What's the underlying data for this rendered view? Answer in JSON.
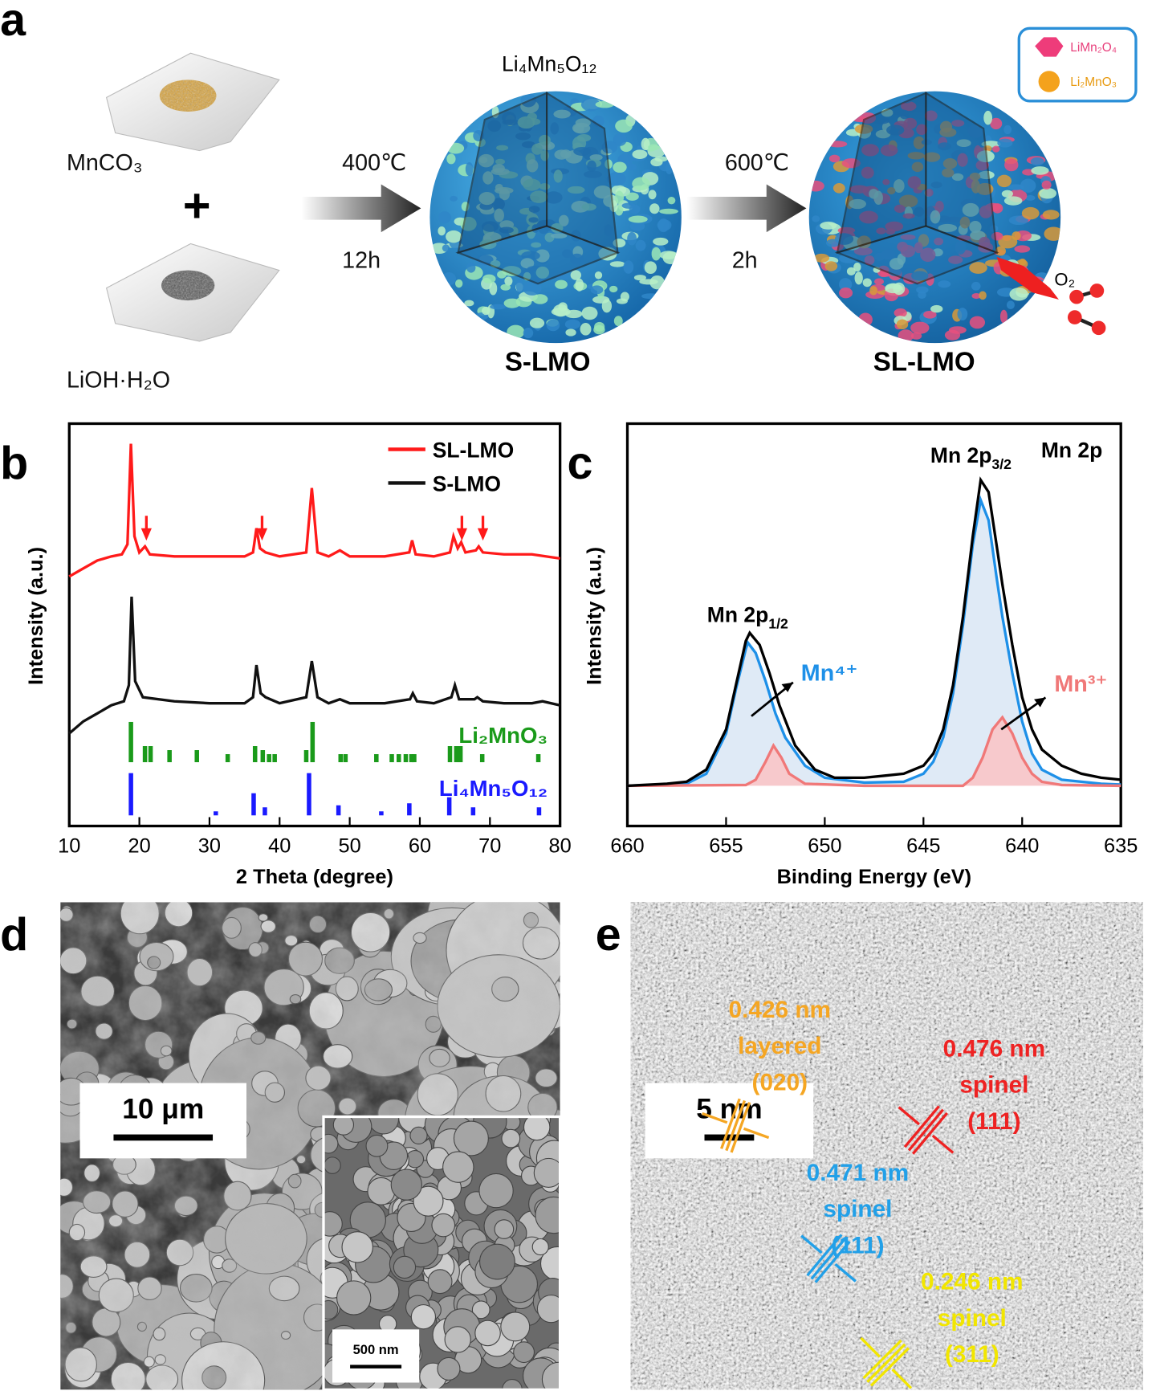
{
  "panel_labels": [
    "a",
    "b",
    "c",
    "d",
    "e"
  ],
  "scheme": {
    "precursors": [
      "MnCO₃",
      "LiOH·H₂O"
    ],
    "plus": "+",
    "steps": [
      {
        "temperature": "400℃",
        "time": "12h"
      },
      {
        "temperature": "600℃",
        "time": "2h"
      }
    ],
    "intermediate": {
      "formula": "Li₄Mn₅O₁₂",
      "name": "S-LMO"
    },
    "product": {
      "name": "SL-LMO",
      "gas": "O₂"
    },
    "legend": [
      "LiMn₂O₄",
      "Li₂MnO₃"
    ]
  },
  "chart_data": [
    {
      "type": "line",
      "x_label": "2 Theta (degree)",
      "y_label": "Intensity (a.u.)",
      "xlim": [
        10,
        80
      ],
      "xticks": [
        10,
        20,
        30,
        40,
        50,
        60,
        70,
        80
      ],
      "ylim": [
        0,
        100
      ],
      "legend": "upper right",
      "series": [
        {
          "name": "SL-LMO",
          "color": "#ff1a1a",
          "x": [
            10,
            12,
            14,
            16,
            17.5,
            18.3,
            18.8,
            19.3,
            20,
            20.8,
            21.5,
            25,
            30,
            35,
            36.2,
            36.7,
            37.2,
            38,
            40,
            43.8,
            44.6,
            45.4,
            47,
            48.6,
            50,
            55,
            58.5,
            58.9,
            59.4,
            62,
            64.3,
            64.8,
            65.4,
            65.9,
            66.5,
            68,
            68.4,
            69,
            72,
            76,
            80
          ],
          "values": [
            62,
            64,
            66,
            67,
            67.5,
            70,
            95,
            72,
            68,
            69.5,
            67.5,
            67,
            67,
            67,
            68,
            74,
            69,
            68,
            67,
            68,
            84,
            68,
            67,
            68.5,
            67,
            67,
            68,
            71,
            67.5,
            67,
            68,
            72,
            69,
            70.5,
            68,
            68.5,
            69.5,
            68,
            67.5,
            67.5,
            66.5
          ]
        },
        {
          "name": "S-LMO",
          "color": "#111111",
          "x": [
            10,
            12,
            14,
            16,
            17.8,
            18.5,
            18.9,
            19.4,
            20.5,
            25,
            30,
            35,
            36.2,
            36.7,
            37.3,
            38,
            40,
            43.8,
            44.6,
            45.4,
            47,
            48.6,
            50,
            55,
            58.6,
            59,
            59.6,
            62,
            64.5,
            65,
            65.6,
            67.8,
            68.2,
            69,
            72,
            76,
            77.5,
            80
          ],
          "values": [
            23,
            26,
            28,
            30,
            31,
            35,
            57,
            36,
            32,
            31,
            30.5,
            30.5,
            32,
            40,
            33,
            32,
            30.5,
            32,
            41,
            32,
            30.5,
            31.5,
            30.5,
            30.5,
            31.5,
            33,
            31,
            30.5,
            32,
            35,
            31.5,
            31.5,
            32,
            31,
            30.5,
            30.5,
            31,
            30
          ]
        }
      ],
      "references": [
        {
          "name": "Li₂MnO₃",
          "color": "#1a9a1a",
          "x": [
            18.8,
            20.8,
            21.6,
            24.3,
            28.2,
            32.6,
            36.5,
            37.6,
            38.5,
            39.3,
            43.8,
            44.7,
            48.7,
            49.4,
            53.8,
            56,
            57,
            58,
            58.8,
            59.2,
            64.3,
            65.2,
            65.8,
            68.9,
            76.9
          ],
          "values": [
            10,
            4,
            4,
            3,
            3,
            2,
            4,
            3,
            2,
            2,
            3,
            10,
            2,
            2,
            2,
            2,
            2,
            2,
            2,
            2,
            4,
            4,
            4,
            2,
            2
          ]
        },
        {
          "name": "Li₄Mn₅O₁₂",
          "color": "#1a1aff",
          "x": [
            18.8,
            30.9,
            36.3,
            37.9,
            44.2,
            48.4,
            54.5,
            58.5,
            64.2,
            67.6,
            77
          ],
          "values": [
            10.5,
            1,
            5.5,
            2,
            10.5,
            2.5,
            1,
            3,
            4.5,
            2,
            2
          ]
        }
      ]
    },
    {
      "type": "line",
      "title": "Mn 2p",
      "x_label": "Binding Energy (eV)",
      "y_label": "Intensity (a.u.)",
      "xlim": [
        660,
        635
      ],
      "xticks": [
        660,
        655,
        650,
        645,
        640,
        635
      ],
      "ylim": [
        0,
        100
      ],
      "peak_labels": [
        {
          "text": "Mn 2p",
          "sub": "1/2"
        },
        {
          "text": "Mn 2p",
          "sub": "3/2"
        }
      ],
      "series": [
        {
          "name": "Mn⁴⁺",
          "color": "#1e90e8",
          "fill": "#dfeaf6",
          "x": [
            660,
            657,
            656,
            655,
            654.5,
            654,
            653.9,
            653.5,
            653,
            652.5,
            652,
            651,
            650,
            648,
            646,
            645,
            644.5,
            644,
            643.5,
            643,
            642.5,
            642.1,
            641.7,
            641.3,
            641,
            640.5,
            640,
            639.5,
            639,
            638,
            636,
            635
          ],
          "values": [
            10,
            10.5,
            13,
            23,
            34,
            44,
            45.6,
            43,
            36,
            28,
            22,
            15,
            12,
            10.8,
            11,
            13,
            16,
            22,
            33,
            50,
            70,
            81,
            76,
            62,
            52,
            38,
            26,
            18,
            14,
            11.5,
            10.5,
            10.3
          ]
        },
        {
          "name": "Mn³⁺",
          "color": "#f07878",
          "fill": "#f7c9cc",
          "x": [
            660,
            654,
            653.5,
            653,
            652.6,
            652.2,
            651.8,
            651,
            648,
            643,
            642.5,
            642,
            641.5,
            641,
            640.5,
            640,
            639.5,
            639,
            638,
            635
          ],
          "values": [
            10,
            10.2,
            11.5,
            16,
            20,
            17,
            13,
            10.5,
            10,
            10,
            12,
            17,
            24,
            27,
            23,
            17,
            13,
            11,
            10.2,
            10
          ]
        },
        {
          "color": "#000000",
          "x": [
            660,
            658,
            657,
            656,
            655,
            654.5,
            654,
            653.8,
            653.3,
            652.8,
            652.3,
            651.5,
            650.5,
            649.5,
            648,
            647,
            646,
            645,
            644.5,
            644,
            643.5,
            643,
            642.5,
            642.1,
            641.7,
            641.3,
            641,
            640.5,
            640,
            639.5,
            639,
            638,
            637,
            636,
            635
          ],
          "values": [
            10,
            10.5,
            11,
            14,
            24,
            35,
            46,
            48,
            45,
            38,
            30,
            20,
            14,
            12,
            12,
            12.5,
            13,
            15,
            18,
            24,
            35,
            52,
            72,
            86,
            83,
            70,
            60,
            45,
            32,
            24,
            19,
            15,
            13,
            12,
            11.5
          ]
        }
      ]
    }
  ],
  "sem": {
    "scale_bar": "10 μm",
    "inset_scale_bar": "500 nm"
  },
  "hrtem": {
    "scale_bar": "5 nm",
    "annotations": [
      {
        "spacing": "0.426 nm",
        "phase": "layered",
        "plane": "(020)",
        "color": "#f5a623"
      },
      {
        "spacing": "0.476 nm",
        "phase": "spinel",
        "plane": "(111)",
        "color": "#ee2222"
      },
      {
        "spacing": "0.471 nm",
        "phase": "spinel",
        "plane": "(111)",
        "color": "#22a0e8"
      },
      {
        "spacing": "0.246 nm",
        "phase": "spinel",
        "plane": "(311)",
        "color": "#f2e600"
      }
    ]
  }
}
